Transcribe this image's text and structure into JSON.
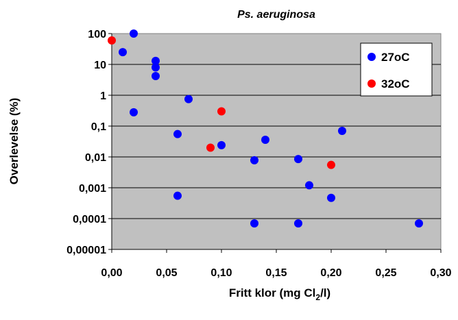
{
  "chart_data": {
    "type": "scatter",
    "title": "Ps. aeruginosa",
    "xlabel": {
      "main": "Fritt klor (mg Cl",
      "sub": "2",
      "tail": "/l)"
    },
    "ylabel": "Overlevelse (%)",
    "x_ticks": [
      "0,00",
      "0,05",
      "0,10",
      "0,15",
      "0,20",
      "0,25",
      "0,30"
    ],
    "y_ticks": [
      "100",
      "10",
      "1",
      "0,1",
      "0,01",
      "0,001",
      "0,0001",
      "0,00001"
    ],
    "xlim": [
      0,
      0.3
    ],
    "ylim": [
      1e-05,
      100
    ],
    "y_scale": "log",
    "grid": "horizontal",
    "legend_position": "top-right",
    "series": [
      {
        "name": "27oC",
        "color": "#0000ff",
        "points": [
          [
            0.02,
            100
          ],
          [
            0.01,
            25
          ],
          [
            0.04,
            13
          ],
          [
            0.04,
            8
          ],
          [
            0.04,
            4.2
          ],
          [
            0.07,
            0.75
          ],
          [
            0.02,
            0.28
          ],
          [
            0.06,
            0.055
          ],
          [
            0.1,
            0.024
          ],
          [
            0.14,
            0.036
          ],
          [
            0.21,
            0.07
          ],
          [
            0.13,
            0.0078
          ],
          [
            0.17,
            0.0085
          ],
          [
            0.18,
            0.0012
          ],
          [
            0.06,
            0.00055
          ],
          [
            0.2,
            0.00047
          ],
          [
            0.13,
            7e-05
          ],
          [
            0.17,
            7e-05
          ],
          [
            0.28,
            7e-05
          ]
        ]
      },
      {
        "name": "32oC",
        "color": "#ff0000",
        "points": [
          [
            0.0,
            60
          ],
          [
            0.1,
            0.3
          ],
          [
            0.09,
            0.02
          ],
          [
            0.2,
            0.0055
          ]
        ]
      }
    ]
  }
}
